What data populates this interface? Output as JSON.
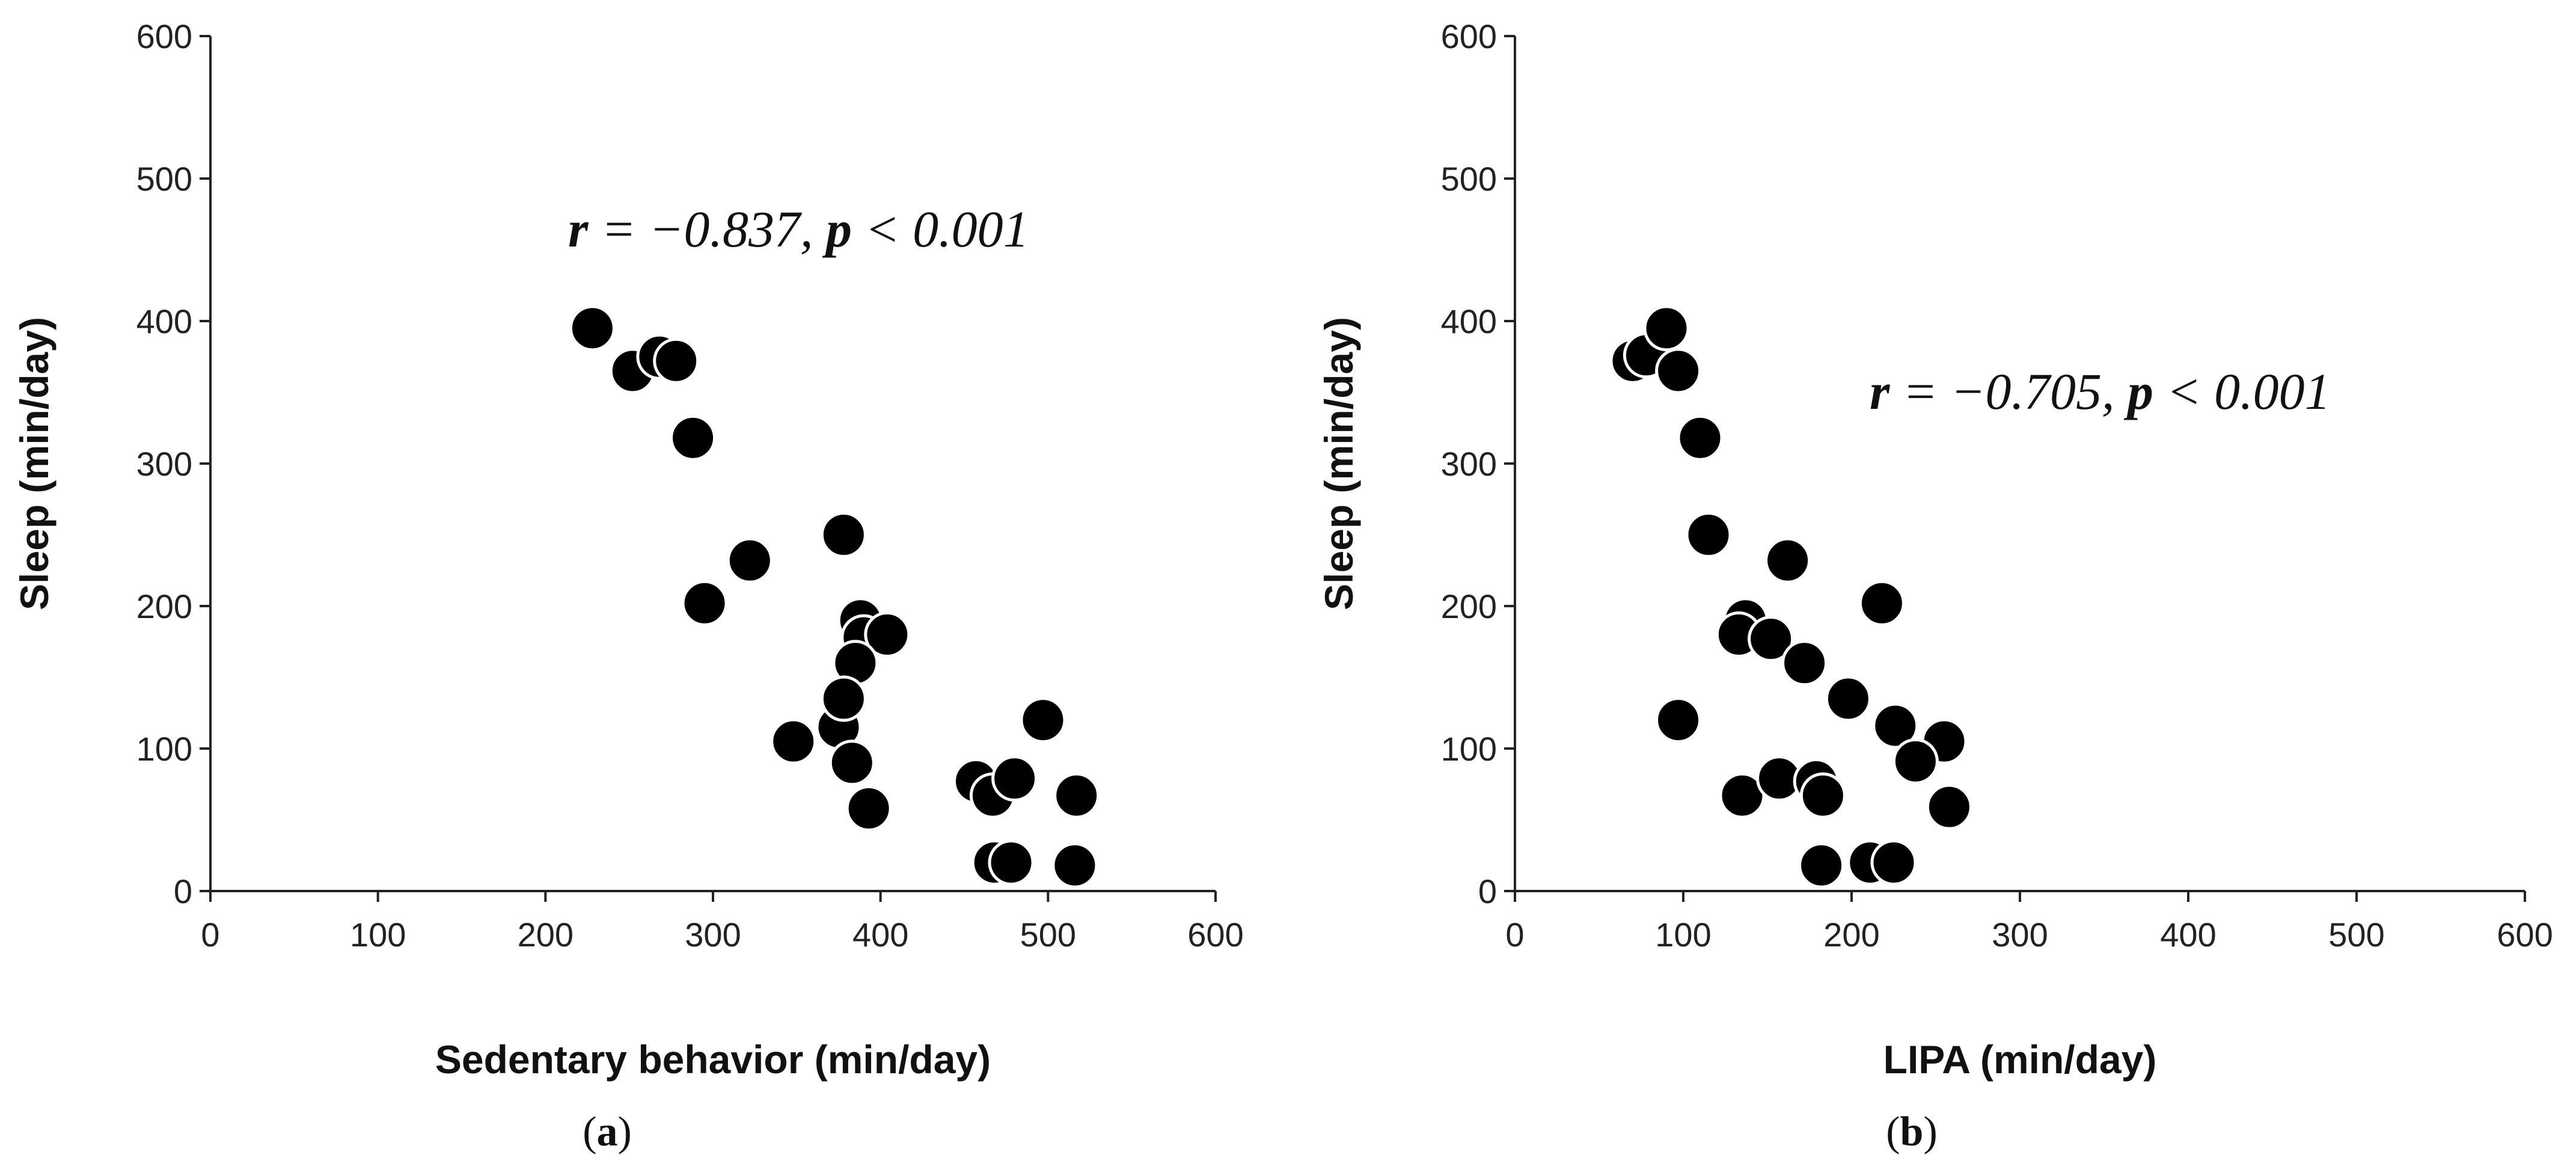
{
  "chart_data": [
    {
      "type": "scatter",
      "panel_label": "a",
      "xlabel": "Sedentary behavior (min/day)",
      "ylabel": "Sleep (min/day)",
      "xlim": [
        0,
        600
      ],
      "ylim": [
        0,
        600
      ],
      "xticks": [
        "0",
        "100",
        "200",
        "300",
        "400",
        "500",
        "600"
      ],
      "yticks": [
        "0",
        "100",
        "200",
        "300",
        "400",
        "500",
        "600"
      ],
      "annotation": {
        "r_symbol": "r",
        "r_text": " = −0.837, ",
        "p_symbol": "p",
        "p_text": " < 0.001"
      },
      "grid": false,
      "points": [
        [
          228,
          395
        ],
        [
          252,
          365
        ],
        [
          268,
          375
        ],
        [
          278,
          372
        ],
        [
          288,
          318
        ],
        [
          322,
          232
        ],
        [
          295,
          202
        ],
        [
          378,
          250
        ],
        [
          388,
          190
        ],
        [
          390,
          178
        ],
        [
          404,
          180
        ],
        [
          385,
          160
        ],
        [
          375,
          115
        ],
        [
          378,
          135
        ],
        [
          348,
          105
        ],
        [
          383,
          90
        ],
        [
          393,
          58
        ],
        [
          457,
          77
        ],
        [
          467,
          67
        ],
        [
          480,
          79
        ],
        [
          497,
          120
        ],
        [
          517,
          67
        ],
        [
          468,
          20
        ],
        [
          478,
          20
        ],
        [
          516,
          18
        ]
      ]
    },
    {
      "type": "scatter",
      "panel_label": "b",
      "xlabel": "LIPA (min/day)",
      "ylabel": "Sleep (min/day)",
      "xlim": [
        0,
        600
      ],
      "ylim": [
        0,
        600
      ],
      "xticks": [
        "0",
        "100",
        "200",
        "300",
        "400",
        "500",
        "600"
      ],
      "yticks": [
        "0",
        "100",
        "200",
        "300",
        "400",
        "500",
        "600"
      ],
      "annotation": {
        "r_symbol": "r",
        "r_text": " = −0.705, ",
        "p_symbol": "p",
        "p_text": " < 0.001"
      },
      "grid": false,
      "points": [
        [
          70,
          372
        ],
        [
          78,
          376
        ],
        [
          90,
          395
        ],
        [
          97,
          365
        ],
        [
          110,
          318
        ],
        [
          115,
          250
        ],
        [
          162,
          232
        ],
        [
          218,
          202
        ],
        [
          137,
          190
        ],
        [
          133,
          180
        ],
        [
          152,
          177
        ],
        [
          172,
          160
        ],
        [
          198,
          135
        ],
        [
          226,
          116
        ],
        [
          97,
          120
        ],
        [
          255,
          105
        ],
        [
          238,
          91
        ],
        [
          258,
          59
        ],
        [
          135,
          67
        ],
        [
          157,
          79
        ],
        [
          179,
          77
        ],
        [
          183,
          67
        ],
        [
          182,
          18
        ],
        [
          211,
          20
        ],
        [
          225,
          20
        ]
      ]
    }
  ]
}
